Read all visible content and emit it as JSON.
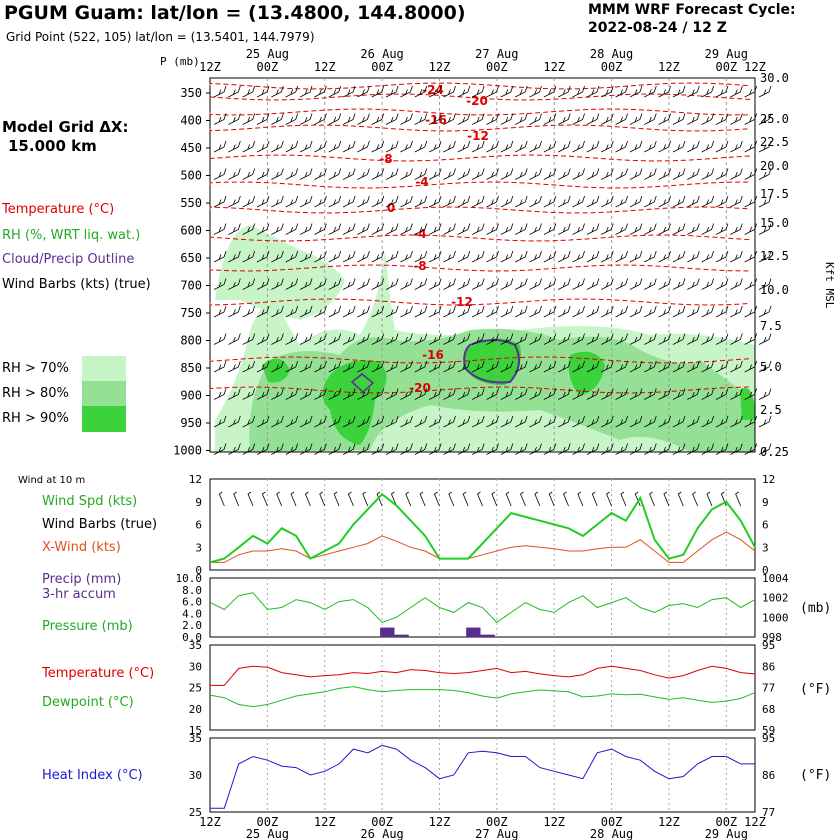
{
  "header": {
    "title": "PGUM Guam:  lat/lon = (13.4800, 144.8000)",
    "subtitle": "Grid Point (522, 105) lat/lon = (13.5401, 144.7979)",
    "cycle_label": "MMM WRF Forecast Cycle:",
    "cycle_value": "2022-08-24 / 12  Z",
    "model_grid": "Model Grid ΔX:",
    "model_grid_value": "15.000 km"
  },
  "legend": {
    "temperature": "Temperature (°C)",
    "rh": "RH (%, WRT liq. wat.)",
    "cloud": "Cloud/Precip Outline",
    "wind": "Wind Barbs (kts) (true)",
    "rh70": "RH > 70%",
    "rh80": "RH > 80%",
    "rh90": "RH > 90%"
  },
  "colors": {
    "temp": "#dd0000",
    "rh70": "#c8f5c8",
    "rh80": "#94e094",
    "rh90": "#3cd23c",
    "cloud": "#5a2d91",
    "wind": "#22cc22",
    "xwind": "#e0501e",
    "pressure": "#22bb22",
    "dew": "#22bb22",
    "heat": "#1a1acc",
    "precip": "#5a2d91"
  },
  "chart_data": [
    {
      "type": "heatmap",
      "name": "upper-air cross section",
      "y_axis_label": "P (mb)",
      "pressure_levels": [
        "350",
        "400",
        "450",
        "500",
        "550",
        "600",
        "650",
        "700",
        "750",
        "800",
        "850",
        "900",
        "950",
        "1000"
      ],
      "right_axis_label": "Kft MSL",
      "right_ticks": [
        "30.0",
        "25.0",
        "22.5",
        "20.0",
        "17.5",
        "15.0",
        "12.5",
        "10.0",
        "7.5",
        "5.0",
        "2.5",
        "0.25"
      ],
      "date_labels": [
        "25 Aug",
        "26 Aug",
        "27 Aug",
        "28 Aug",
        "29 Aug"
      ],
      "time_ticks": [
        "00Z",
        "12Z",
        "00Z",
        "12Z",
        "00Z",
        "12Z",
        "00Z",
        "12Z",
        "00Z",
        "12Z"
      ],
      "temperature_isotherm_labels": [
        "-24",
        "-20",
        "-16",
        "-12",
        "-8",
        "-4",
        "0",
        "-4",
        "-8",
        "-12",
        "-16",
        "-20"
      ]
    },
    {
      "type": "line",
      "name": "surface wind",
      "title": "Wind at 10 m",
      "labels": [
        "Wind Spd (kts)",
        "Wind Barbs (true)",
        "X-Wind (kts)"
      ],
      "ylim": [
        0,
        12
      ],
      "left_ticks": [
        "12",
        "9",
        "6",
        "3",
        "0"
      ],
      "right_ticks": [
        "12",
        "9",
        "6",
        "3",
        "0"
      ],
      "x": [
        0,
        3,
        6,
        9,
        12,
        15,
        18,
        21,
        24,
        27,
        30,
        33,
        36,
        39,
        42,
        45,
        48,
        51,
        54,
        57,
        60,
        63,
        66,
        69,
        72,
        75,
        78,
        81,
        84,
        87,
        90,
        93,
        96,
        99,
        102,
        105,
        108,
        111,
        114
      ],
      "series": [
        {
          "name": "Wind Spd (kts)",
          "values": [
            1.0,
            1.5,
            3.0,
            4.5,
            3.5,
            5.5,
            4.5,
            1.5,
            2.5,
            3.5,
            6.0,
            8.0,
            10.0,
            8.5,
            6.5,
            4.5,
            1.5,
            1.5,
            1.5,
            3.5,
            5.5,
            7.5,
            7.0,
            6.5,
            6.0,
            5.5,
            4.5,
            6.0,
            7.5,
            6.5,
            9.5,
            4.0,
            1.5,
            2.0,
            5.5,
            8.0,
            9.0,
            6.5,
            3.0
          ]
        },
        {
          "name": "X-Wind (kts)",
          "values": [
            1.0,
            1.0,
            2.0,
            2.5,
            2.5,
            2.8,
            2.5,
            1.5,
            2.0,
            2.5,
            3.0,
            3.5,
            4.5,
            3.8,
            3.0,
            2.5,
            1.5,
            1.5,
            1.5,
            2.0,
            2.5,
            3.0,
            3.2,
            3.0,
            2.8,
            2.5,
            2.5,
            2.8,
            3.0,
            3.0,
            4.0,
            2.5,
            1.0,
            1.0,
            2.5,
            4.0,
            5.0,
            4.0,
            2.5
          ]
        }
      ]
    },
    {
      "type": "line",
      "name": "precip and pressure",
      "labels": [
        "Precip (mm)",
        "3-hr accum",
        "Pressure (mb)"
      ],
      "left_ticks": [
        "10.0",
        "8.0",
        "6.0",
        "4.0",
        "2.0",
        "0.0"
      ],
      "right_ticks": [
        "1004",
        "1002",
        "1000",
        "998"
      ],
      "right_unit": "(mb)",
      "x": [
        0,
        3,
        6,
        9,
        12,
        15,
        18,
        21,
        24,
        27,
        30,
        33,
        36,
        39,
        42,
        45,
        48,
        51,
        54,
        57,
        60,
        63,
        66,
        69,
        72,
        75,
        78,
        81,
        84,
        87,
        90,
        93,
        96,
        99,
        102,
        105,
        108,
        111,
        114
      ],
      "series": [
        {
          "name": "Pressure (mb)",
          "values": [
            1001.5,
            1000.8,
            1002.2,
            1002.5,
            1000.8,
            1001.0,
            1001.8,
            1001.5,
            1000.8,
            1001.6,
            1001.8,
            1001.0,
            999.5,
            1000.0,
            1001.0,
            1002.0,
            1001.0,
            1000.5,
            1001.5,
            1001.0,
            999.5,
            1000.5,
            1001.5,
            1000.8,
            1000.5,
            1001.5,
            1002.2,
            1001.0,
            1001.5,
            1002.0,
            1001.0,
            1000.5,
            1001.2,
            1001.4,
            1001.0,
            1001.8,
            1002.0,
            1001.0,
            1001.8
          ]
        },
        {
          "name": "Precip (mm)",
          "bars": [
            [
              36,
              1.6
            ],
            [
              39,
              0.4
            ],
            [
              54,
              1.6
            ],
            [
              57,
              0.4
            ]
          ]
        }
      ]
    },
    {
      "type": "line",
      "name": "temperature and dewpoint",
      "labels": [
        "Temperature (°C)",
        "Dewpoint (°C)"
      ],
      "left_ticks": [
        "35",
        "30",
        "25",
        "20",
        "15"
      ],
      "right_ticks": [
        "95",
        "86",
        "77",
        "68",
        "59"
      ],
      "right_unit": "(°F)",
      "x": [
        0,
        3,
        6,
        9,
        12,
        15,
        18,
        21,
        24,
        27,
        30,
        33,
        36,
        39,
        42,
        45,
        48,
        51,
        54,
        57,
        60,
        63,
        66,
        69,
        72,
        75,
        78,
        81,
        84,
        87,
        90,
        93,
        96,
        99,
        102,
        105,
        108,
        111,
        114
      ],
      "series": [
        {
          "name": "Temperature (°C)",
          "values": [
            25.5,
            25.5,
            29.5,
            30.0,
            29.8,
            28.5,
            28.0,
            27.5,
            27.8,
            28.0,
            28.5,
            28.3,
            28.8,
            28.5,
            29.2,
            29.0,
            28.5,
            28.3,
            28.5,
            29.0,
            29.5,
            28.5,
            28.8,
            28.2,
            27.8,
            27.5,
            28.0,
            29.5,
            30.0,
            29.5,
            29.0,
            28.0,
            27.2,
            27.8,
            29.0,
            30.0,
            29.5,
            28.5,
            28.2
          ]
        },
        {
          "name": "Dewpoint (°C)",
          "values": [
            23.2,
            22.6,
            21.0,
            20.5,
            21.0,
            22.0,
            23.0,
            23.5,
            24.0,
            24.8,
            25.2,
            24.5,
            24.0,
            24.3,
            24.5,
            24.5,
            24.5,
            24.3,
            23.8,
            23.0,
            22.5,
            23.5,
            24.0,
            24.4,
            24.2,
            24.0,
            22.8,
            23.0,
            23.5,
            23.3,
            23.4,
            22.8,
            22.2,
            22.6,
            22.0,
            21.5,
            21.8,
            22.4,
            23.8
          ]
        }
      ]
    },
    {
      "type": "line",
      "name": "heat index",
      "labels": [
        "Heat Index (°C)"
      ],
      "left_ticks": [
        "35",
        "30",
        "25"
      ],
      "right_ticks": [
        "95",
        "86",
        "77"
      ],
      "right_unit": "(°F)",
      "x_bottom_times": [
        "00Z",
        "12Z",
        "00Z",
        "12Z",
        "00Z",
        "12Z",
        "00Z",
        "12Z",
        "00Z",
        "12Z"
      ],
      "x_bottom_dates": [
        "25 Aug",
        "26 Aug",
        "27 Aug",
        "28 Aug",
        "29 Aug"
      ],
      "x": [
        0,
        3,
        6,
        9,
        12,
        15,
        18,
        21,
        24,
        27,
        30,
        33,
        36,
        39,
        42,
        45,
        48,
        51,
        54,
        57,
        60,
        63,
        66,
        69,
        72,
        75,
        78,
        81,
        84,
        87,
        90,
        93,
        96,
        99,
        102,
        105,
        108,
        111,
        114
      ],
      "series": [
        {
          "name": "Heat Index (°C)",
          "values": [
            25.5,
            25.5,
            31.5,
            32.5,
            32.0,
            31.2,
            31.0,
            30.0,
            30.5,
            31.5,
            33.5,
            33.0,
            34.0,
            33.5,
            32.0,
            31.0,
            29.5,
            30.0,
            33.0,
            33.2,
            33.0,
            32.5,
            32.5,
            31.0,
            30.5,
            30.0,
            29.5,
            33.0,
            33.5,
            32.5,
            32.0,
            30.5,
            29.5,
            29.8,
            31.5,
            32.5,
            32.5,
            31.5,
            31.5
          ]
        }
      ]
    }
  ]
}
